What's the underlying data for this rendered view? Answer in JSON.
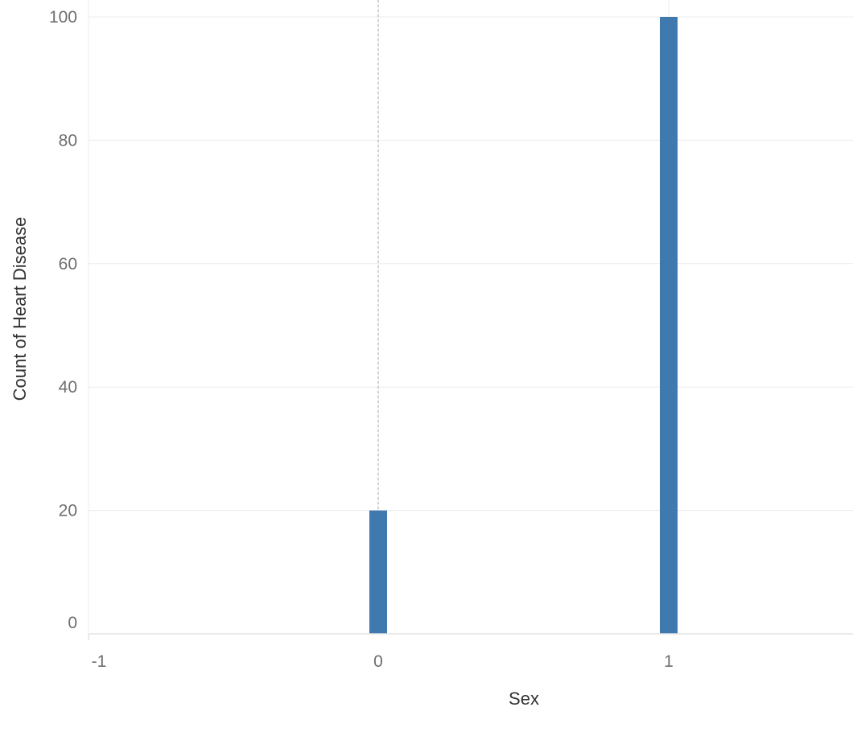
{
  "chart_data": {
    "type": "bar",
    "title": "",
    "xlabel": "Sex",
    "ylabel": "Count of Heart Disease",
    "x_ticks": [
      "-1",
      "0",
      "1"
    ],
    "y_ticks": [
      "0",
      "20",
      "40",
      "60",
      "80",
      "100"
    ],
    "xlim": [
      -1,
      1.6
    ],
    "ylim": [
      0,
      100
    ],
    "grid": true,
    "reference_line_x": 0,
    "bar_color": "#4079ad",
    "series": [
      {
        "x": [
          0,
          1
        ],
        "values": [
          20,
          100
        ]
      }
    ]
  }
}
